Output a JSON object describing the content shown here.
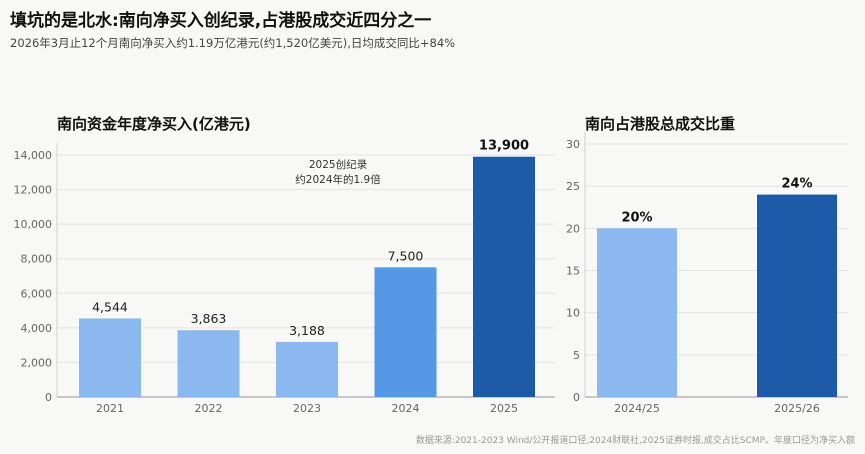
{
  "title": "填坑的是北水:南向净买入创纪录,占港股成交近四分之一",
  "subtitle": "2026年3月止12个月南向净买入约1.19万亿港元(约1,520亿美元),日均成交同比+84%",
  "source": "数据来源:2021-2023 Wind/公开报道口径,2024财联社,2025证券时报,成交占比SCMP。年度口径为净买入额",
  "chart_data": [
    {
      "type": "bar",
      "title": "南向资金年度净买入(亿港元)",
      "categories": [
        "2021",
        "2022",
        "2023",
        "2024",
        "2025"
      ],
      "values": [
        4544,
        3863,
        3188,
        7500,
        13900
      ],
      "value_labels": [
        "4,544",
        "3,863",
        "3,188",
        "7,500",
        "13,900"
      ],
      "bar_colors": [
        "#8ab8ef",
        "#8ab8ef",
        "#8ab8ef",
        "#5599e6",
        "#1d5aa8"
      ],
      "ylim": [
        0,
        14000
      ],
      "yticks": [
        0,
        2000,
        4000,
        6000,
        8000,
        10000,
        12000,
        14000
      ],
      "ytick_labels": [
        "0",
        "2,000",
        "4,000",
        "6,000",
        "8,000",
        "10,000",
        "12,000",
        "14,000"
      ],
      "grid": true,
      "annotation": [
        "2025创纪录",
        "约2024年的1.9倍"
      ]
    },
    {
      "type": "bar",
      "title": "南向占港股总成交比重",
      "categories": [
        "2024/25",
        "2025/26"
      ],
      "values": [
        20,
        24
      ],
      "value_labels": [
        "20%",
        "24%"
      ],
      "bar_colors": [
        "#8ab8ef",
        "#1d5aa8"
      ],
      "ylim": [
        0,
        30
      ],
      "yticks": [
        0,
        5,
        10,
        15,
        20,
        25,
        30
      ],
      "ytick_labels": [
        "0",
        "5",
        "10",
        "15",
        "20",
        "25",
        "30"
      ],
      "grid": true
    }
  ]
}
